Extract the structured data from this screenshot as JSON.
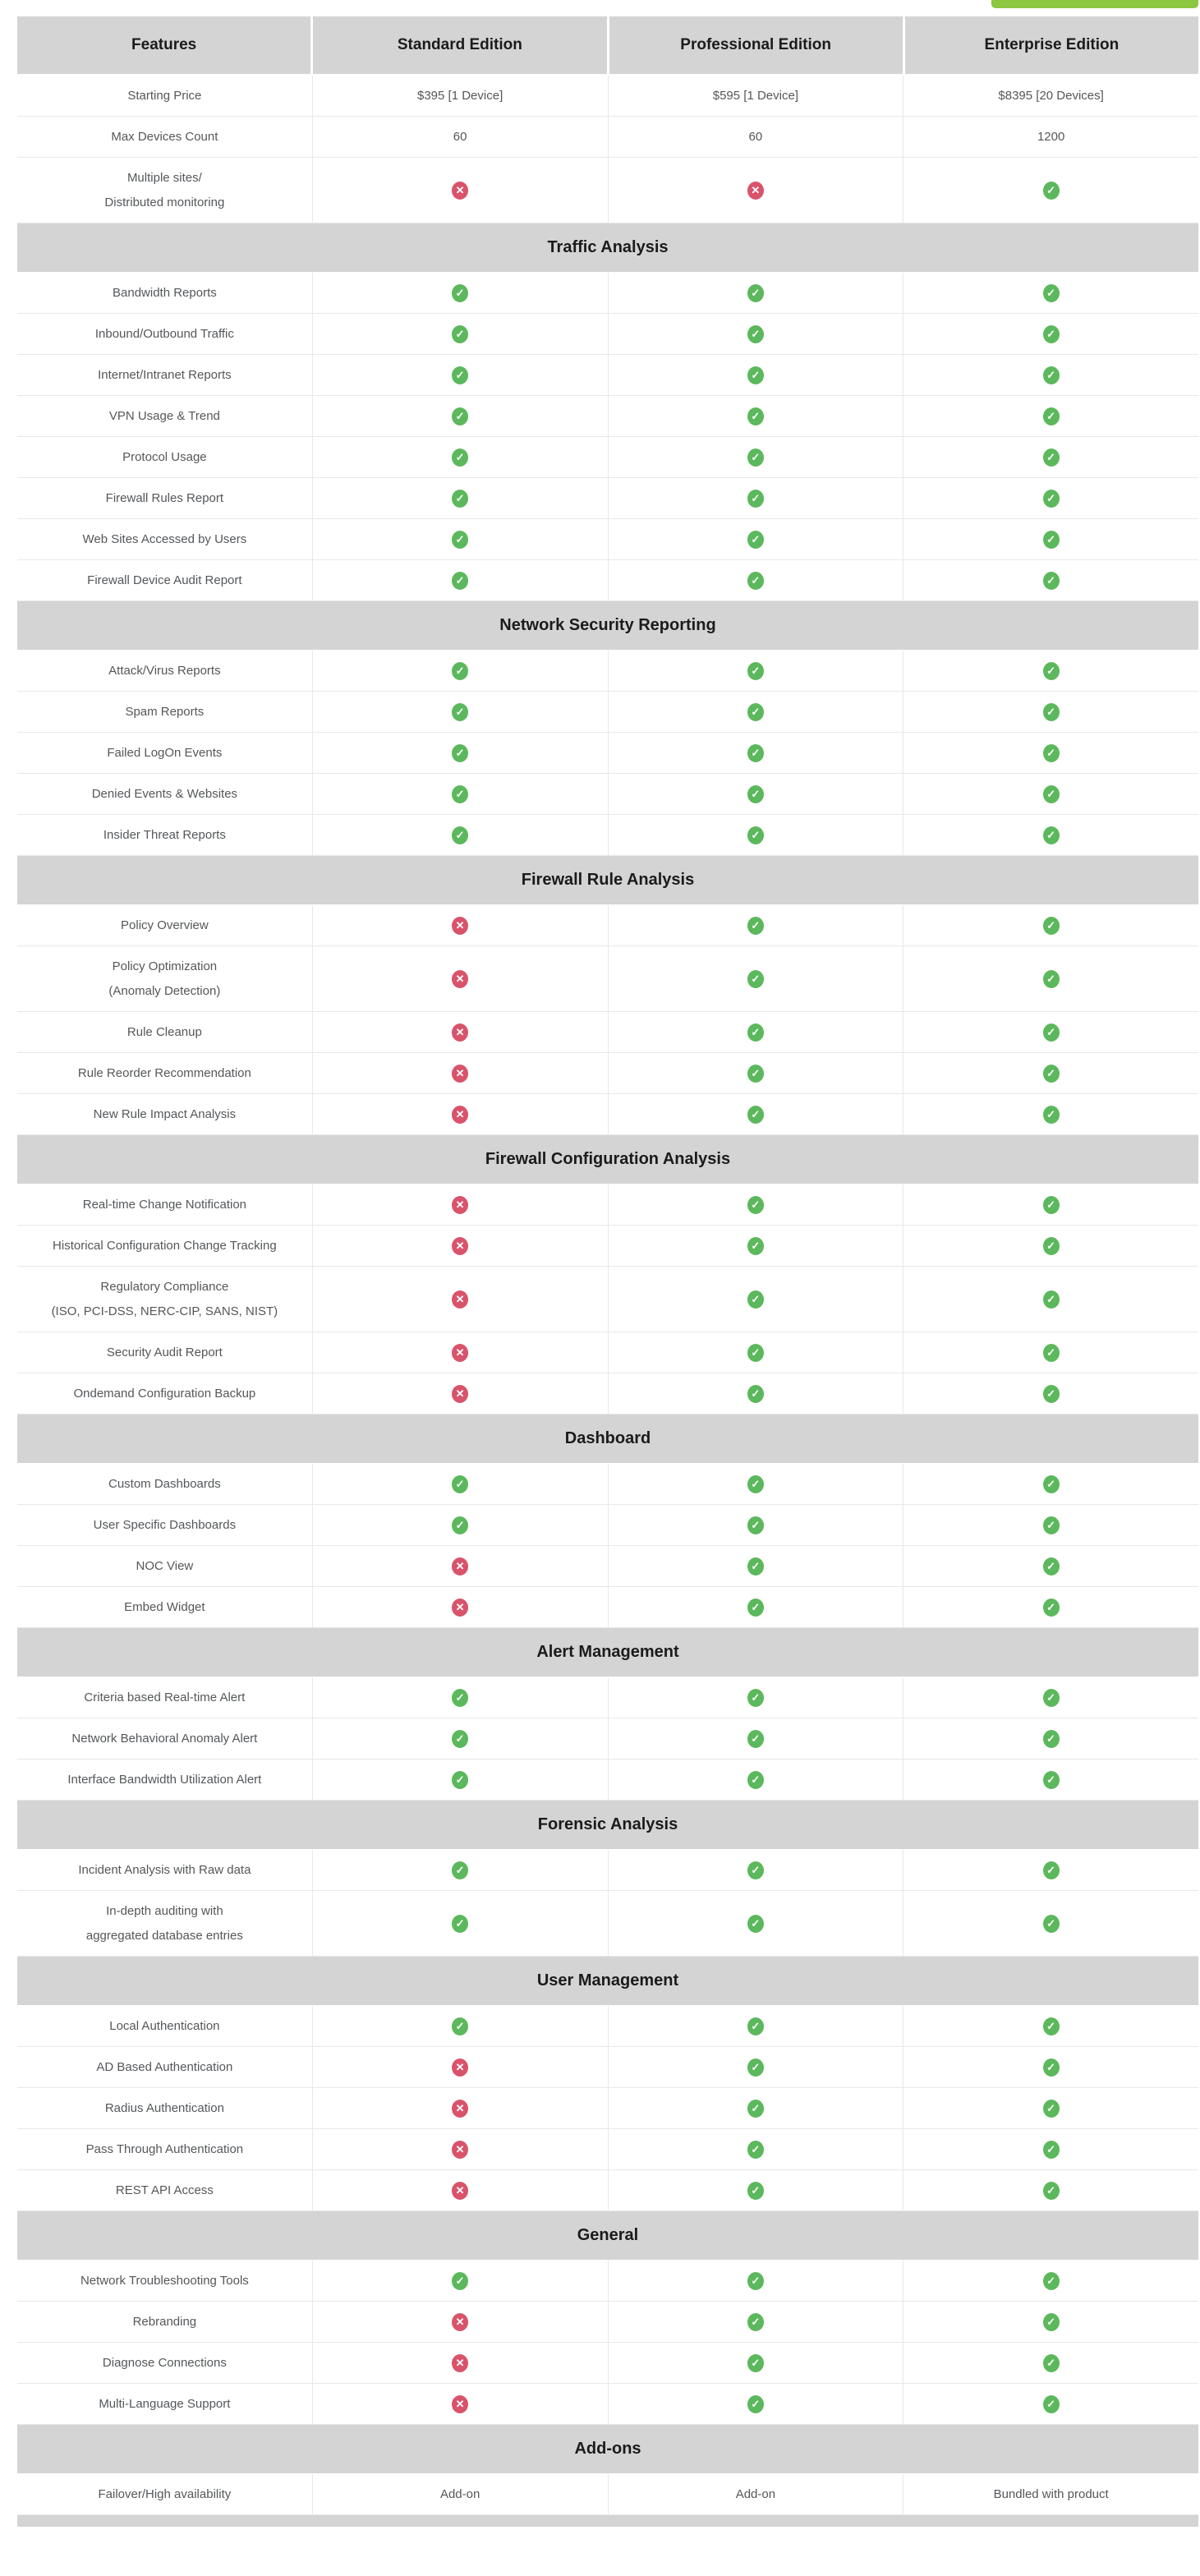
{
  "colors": {
    "hdr": "#d4d4d4",
    "hdrtext": "#1b1b1b",
    "text": "#54575a",
    "border": "#e8e8e8",
    "check": "#5cb85c",
    "cross": "#d9536b",
    "btn": "#8dc63f"
  },
  "icons": {
    "check_glyph": "✓",
    "cross_glyph": "✕"
  },
  "table": {
    "columns": [
      "Features",
      "Standard Edition",
      "Professional Edition",
      "Enterprise Edition"
    ],
    "rows": [
      {
        "type": "feature",
        "label_lines": [
          "Starting Price"
        ],
        "values": [
          "$395 [1 Device]",
          "$595 [1 Device]",
          "$8395 [20 Devices]"
        ]
      },
      {
        "type": "feature",
        "label_lines": [
          "Max Devices Count"
        ],
        "values": [
          "60",
          "60",
          "1200"
        ]
      },
      {
        "type": "feature",
        "label_lines": [
          "Multiple sites/",
          "Distributed monitoring"
        ],
        "values": [
          "cross",
          "cross",
          "check"
        ]
      },
      {
        "type": "section",
        "label": "Traffic Analysis"
      },
      {
        "type": "feature",
        "label_lines": [
          "Bandwidth Reports"
        ],
        "values": [
          "check",
          "check",
          "check"
        ]
      },
      {
        "type": "feature",
        "label_lines": [
          "Inbound/Outbound Traffic"
        ],
        "values": [
          "check",
          "check",
          "check"
        ]
      },
      {
        "type": "feature",
        "label_lines": [
          "Internet/Intranet Reports"
        ],
        "values": [
          "check",
          "check",
          "check"
        ]
      },
      {
        "type": "feature",
        "label_lines": [
          "VPN Usage & Trend"
        ],
        "values": [
          "check",
          "check",
          "check"
        ]
      },
      {
        "type": "feature",
        "label_lines": [
          "Protocol Usage"
        ],
        "values": [
          "check",
          "check",
          "check"
        ]
      },
      {
        "type": "feature",
        "label_lines": [
          "Firewall Rules Report"
        ],
        "values": [
          "check",
          "check",
          "check"
        ]
      },
      {
        "type": "feature",
        "label_lines": [
          "Web Sites Accessed by Users"
        ],
        "values": [
          "check",
          "check",
          "check"
        ]
      },
      {
        "type": "feature",
        "label_lines": [
          "Firewall Device Audit Report"
        ],
        "values": [
          "check",
          "check",
          "check"
        ]
      },
      {
        "type": "section",
        "label": "Network Security Reporting"
      },
      {
        "type": "feature",
        "label_lines": [
          "Attack/Virus Reports"
        ],
        "values": [
          "check",
          "check",
          "check"
        ]
      },
      {
        "type": "feature",
        "label_lines": [
          "Spam Reports"
        ],
        "values": [
          "check",
          "check",
          "check"
        ]
      },
      {
        "type": "feature",
        "label_lines": [
          "Failed LogOn Events"
        ],
        "values": [
          "check",
          "check",
          "check"
        ]
      },
      {
        "type": "feature",
        "label_lines": [
          "Denied Events & Websites"
        ],
        "values": [
          "check",
          "check",
          "check"
        ]
      },
      {
        "type": "feature",
        "label_lines": [
          "Insider Threat Reports"
        ],
        "values": [
          "check",
          "check",
          "check"
        ]
      },
      {
        "type": "section",
        "label": "Firewall Rule Analysis"
      },
      {
        "type": "feature",
        "label_lines": [
          "Policy Overview"
        ],
        "values": [
          "cross",
          "check",
          "check"
        ]
      },
      {
        "type": "feature",
        "label_lines": [
          "Policy Optimization",
          "(Anomaly Detection)"
        ],
        "values": [
          "cross",
          "check",
          "check"
        ]
      },
      {
        "type": "feature",
        "label_lines": [
          "Rule Cleanup"
        ],
        "values": [
          "cross",
          "check",
          "check"
        ]
      },
      {
        "type": "feature",
        "label_lines": [
          "Rule Reorder Recommendation"
        ],
        "values": [
          "cross",
          "check",
          "check"
        ]
      },
      {
        "type": "feature",
        "label_lines": [
          "New Rule Impact Analysis"
        ],
        "values": [
          "cross",
          "check",
          "check"
        ]
      },
      {
        "type": "section",
        "label": "Firewall Configuration Analysis"
      },
      {
        "type": "feature",
        "label_lines": [
          "Real-time Change Notification"
        ],
        "values": [
          "cross",
          "check",
          "check"
        ]
      },
      {
        "type": "feature",
        "label_lines": [
          "Historical Configuration Change Tracking"
        ],
        "values": [
          "cross",
          "check",
          "check"
        ]
      },
      {
        "type": "feature",
        "label_lines": [
          "Regulatory Compliance",
          "(ISO, PCI-DSS, NERC-CIP, SANS, NIST)"
        ],
        "values": [
          "cross",
          "check",
          "check"
        ]
      },
      {
        "type": "feature",
        "label_lines": [
          "Security Audit Report"
        ],
        "values": [
          "cross",
          "check",
          "check"
        ]
      },
      {
        "type": "feature",
        "label_lines": [
          "Ondemand Configuration Backup"
        ],
        "values": [
          "cross",
          "check",
          "check"
        ]
      },
      {
        "type": "section",
        "label": "Dashboard"
      },
      {
        "type": "feature",
        "label_lines": [
          "Custom Dashboards"
        ],
        "values": [
          "check",
          "check",
          "check"
        ]
      },
      {
        "type": "feature",
        "label_lines": [
          "User Specific Dashboards"
        ],
        "values": [
          "check",
          "check",
          "check"
        ]
      },
      {
        "type": "feature",
        "label_lines": [
          "NOC View"
        ],
        "values": [
          "cross",
          "check",
          "check"
        ]
      },
      {
        "type": "feature",
        "label_lines": [
          "Embed Widget"
        ],
        "values": [
          "cross",
          "check",
          "check"
        ]
      },
      {
        "type": "section",
        "label": "Alert Management"
      },
      {
        "type": "feature",
        "label_lines": [
          "Criteria based Real-time Alert"
        ],
        "values": [
          "check",
          "check",
          "check"
        ]
      },
      {
        "type": "feature",
        "label_lines": [
          "Network Behavioral Anomaly Alert"
        ],
        "values": [
          "check",
          "check",
          "check"
        ]
      },
      {
        "type": "feature",
        "label_lines": [
          "Interface Bandwidth Utilization Alert"
        ],
        "values": [
          "check",
          "check",
          "check"
        ]
      },
      {
        "type": "section",
        "label": "Forensic Analysis"
      },
      {
        "type": "feature",
        "label_lines": [
          "Incident Analysis with Raw data"
        ],
        "values": [
          "check",
          "check",
          "check"
        ]
      },
      {
        "type": "feature",
        "label_lines": [
          "In-depth auditing with",
          "aggregated database entries"
        ],
        "values": [
          "check",
          "check",
          "check"
        ]
      },
      {
        "type": "section",
        "label": "User Management"
      },
      {
        "type": "feature",
        "label_lines": [
          "Local Authentication"
        ],
        "values": [
          "check",
          "check",
          "check"
        ]
      },
      {
        "type": "feature",
        "label_lines": [
          "AD Based Authentication"
        ],
        "values": [
          "cross",
          "check",
          "check"
        ]
      },
      {
        "type": "feature",
        "label_lines": [
          "Radius Authentication"
        ],
        "values": [
          "cross",
          "check",
          "check"
        ]
      },
      {
        "type": "feature",
        "label_lines": [
          "Pass Through Authentication"
        ],
        "values": [
          "cross",
          "check",
          "check"
        ]
      },
      {
        "type": "feature",
        "label_lines": [
          "REST API Access"
        ],
        "values": [
          "cross",
          "check",
          "check"
        ]
      },
      {
        "type": "section",
        "label": "General"
      },
      {
        "type": "feature",
        "label_lines": [
          "Network Troubleshooting Tools"
        ],
        "values": [
          "check",
          "check",
          "check"
        ]
      },
      {
        "type": "feature",
        "label_lines": [
          "Rebranding"
        ],
        "values": [
          "cross",
          "check",
          "check"
        ]
      },
      {
        "type": "feature",
        "label_lines": [
          "Diagnose Connections"
        ],
        "values": [
          "cross",
          "check",
          "check"
        ]
      },
      {
        "type": "feature",
        "label_lines": [
          "Multi-Language Support"
        ],
        "values": [
          "cross",
          "check",
          "check"
        ]
      },
      {
        "type": "section",
        "label": "Add-ons"
      },
      {
        "type": "feature",
        "label_lines": [
          "Failover/High availability"
        ],
        "values": [
          "Add-on",
          "Add-on",
          "Bundled with product"
        ]
      }
    ]
  }
}
